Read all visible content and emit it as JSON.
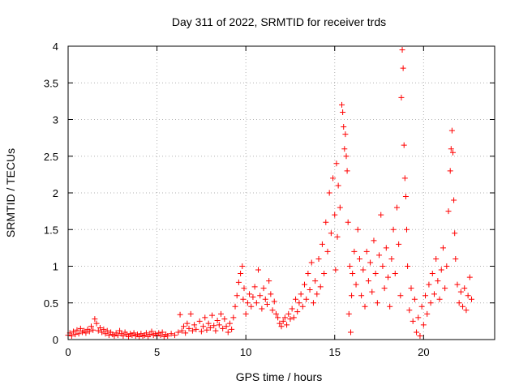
{
  "chart_data": {
    "type": "scatter",
    "title": "Day 311 of 2022, SRMTID for receiver trds",
    "xlabel": "GPS time / hours",
    "ylabel": "SRMTID / TECUs",
    "xlim": [
      0,
      24
    ],
    "ylim": [
      0,
      4
    ],
    "xticks": [
      0,
      5,
      10,
      15,
      20
    ],
    "xtick_labels": [
      "0",
      "5",
      "10",
      "15",
      "20"
    ],
    "yticks": [
      0,
      0.5,
      1,
      1.5,
      2,
      2.5,
      3,
      3.5,
      4
    ],
    "ytick_labels": [
      "0",
      "0.5",
      "1",
      "1.5",
      "2",
      "2.5",
      "3",
      "3.5",
      "4"
    ],
    "grid": true,
    "marker": "+",
    "color": "#ff0000",
    "series": [
      {
        "name": "SRMTID",
        "points": [
          [
            0.0,
            0.06
          ],
          [
            0.1,
            0.09
          ],
          [
            0.2,
            0.05
          ],
          [
            0.3,
            0.11
          ],
          [
            0.4,
            0.07
          ],
          [
            0.5,
            0.13
          ],
          [
            0.6,
            0.08
          ],
          [
            0.7,
            0.15
          ],
          [
            0.8,
            0.1
          ],
          [
            0.9,
            0.12
          ],
          [
            1.0,
            0.09
          ],
          [
            1.1,
            0.14
          ],
          [
            1.2,
            0.11
          ],
          [
            1.3,
            0.18
          ],
          [
            1.4,
            0.13
          ],
          [
            1.5,
            0.28
          ],
          [
            1.6,
            0.22
          ],
          [
            1.7,
            0.12
          ],
          [
            1.8,
            0.16
          ],
          [
            1.9,
            0.1
          ],
          [
            2.0,
            0.14
          ],
          [
            2.1,
            0.08
          ],
          [
            2.2,
            0.12
          ],
          [
            2.3,
            0.06
          ],
          [
            2.4,
            0.1
          ],
          [
            2.5,
            0.07
          ],
          [
            2.6,
            0.05
          ],
          [
            2.7,
            0.09
          ],
          [
            2.8,
            0.06
          ],
          [
            2.9,
            0.12
          ],
          [
            3.0,
            0.08
          ],
          [
            3.1,
            0.05
          ],
          [
            3.2,
            0.1
          ],
          [
            3.3,
            0.07
          ],
          [
            3.4,
            0.04
          ],
          [
            3.5,
            0.08
          ],
          [
            3.6,
            0.06
          ],
          [
            3.7,
            0.09
          ],
          [
            3.8,
            0.05
          ],
          [
            3.9,
            0.07
          ],
          [
            4.0,
            0.04
          ],
          [
            4.1,
            0.08
          ],
          [
            4.2,
            0.05
          ],
          [
            4.3,
            0.06
          ],
          [
            4.4,
            0.09
          ],
          [
            4.5,
            0.04
          ],
          [
            4.6,
            0.07
          ],
          [
            4.7,
            0.11
          ],
          [
            4.8,
            0.06
          ],
          [
            4.9,
            0.08
          ],
          [
            5.0,
            0.05
          ],
          [
            5.1,
            0.09
          ],
          [
            5.2,
            0.06
          ],
          [
            5.3,
            0.1
          ],
          [
            5.4,
            0.04
          ],
          [
            5.5,
            0.07
          ],
          [
            5.6,
            0.05
          ],
          [
            5.8,
            0.08
          ],
          [
            6.0,
            0.06
          ],
          [
            6.2,
            0.1
          ],
          [
            6.3,
            0.34
          ],
          [
            6.4,
            0.12
          ],
          [
            6.5,
            0.18
          ],
          [
            6.6,
            0.09
          ],
          [
            6.7,
            0.22
          ],
          [
            6.8,
            0.15
          ],
          [
            6.9,
            0.35
          ],
          [
            7.0,
            0.12
          ],
          [
            7.1,
            0.2
          ],
          [
            7.2,
            0.14
          ],
          [
            7.4,
            0.25
          ],
          [
            7.5,
            0.11
          ],
          [
            7.6,
            0.18
          ],
          [
            7.7,
            0.3
          ],
          [
            7.8,
            0.13
          ],
          [
            7.9,
            0.22
          ],
          [
            8.0,
            0.16
          ],
          [
            8.1,
            0.33
          ],
          [
            8.2,
            0.19
          ],
          [
            8.3,
            0.12
          ],
          [
            8.4,
            0.26
          ],
          [
            8.5,
            0.2
          ],
          [
            8.6,
            0.35
          ],
          [
            8.7,
            0.15
          ],
          [
            8.8,
            0.28
          ],
          [
            8.9,
            0.18
          ],
          [
            9.0,
            0.1
          ],
          [
            9.1,
            0.22
          ],
          [
            9.2,
            0.14
          ],
          [
            9.3,
            0.3
          ],
          [
            9.4,
            0.45
          ],
          [
            9.5,
            0.6
          ],
          [
            9.6,
            0.78
          ],
          [
            9.7,
            0.9
          ],
          [
            9.8,
            1.0
          ],
          [
            9.85,
            0.55
          ],
          [
            9.9,
            0.7
          ],
          [
            10.0,
            0.35
          ],
          [
            10.1,
            0.5
          ],
          [
            10.2,
            0.62
          ],
          [
            10.3,
            0.45
          ],
          [
            10.4,
            0.58
          ],
          [
            10.5,
            0.72
          ],
          [
            10.6,
            0.5
          ],
          [
            10.7,
            0.95
          ],
          [
            10.8,
            0.6
          ],
          [
            10.9,
            0.42
          ],
          [
            11.0,
            0.7
          ],
          [
            11.1,
            0.55
          ],
          [
            11.2,
            0.48
          ],
          [
            11.3,
            0.8
          ],
          [
            11.4,
            0.62
          ],
          [
            11.5,
            0.4
          ],
          [
            11.6,
            0.52
          ],
          [
            11.7,
            0.35
          ],
          [
            11.8,
            0.3
          ],
          [
            11.9,
            0.22
          ],
          [
            12.0,
            0.18
          ],
          [
            12.1,
            0.25
          ],
          [
            12.2,
            0.3
          ],
          [
            12.3,
            0.2
          ],
          [
            12.4,
            0.35
          ],
          [
            12.5,
            0.28
          ],
          [
            12.6,
            0.42
          ],
          [
            12.7,
            0.3
          ],
          [
            12.8,
            0.55
          ],
          [
            12.9,
            0.38
          ],
          [
            13.0,
            0.5
          ],
          [
            13.1,
            0.62
          ],
          [
            13.2,
            0.45
          ],
          [
            13.3,
            0.75
          ],
          [
            13.4,
            0.55
          ],
          [
            13.5,
            0.9
          ],
          [
            13.6,
            0.68
          ],
          [
            13.7,
            1.05
          ],
          [
            13.8,
            0.5
          ],
          [
            13.9,
            0.8
          ],
          [
            14.0,
            0.62
          ],
          [
            14.1,
            1.1
          ],
          [
            14.2,
            0.72
          ],
          [
            14.3,
            1.3
          ],
          [
            14.4,
            0.9
          ],
          [
            14.5,
            1.6
          ],
          [
            14.6,
            1.2
          ],
          [
            14.7,
            2.0
          ],
          [
            14.8,
            1.45
          ],
          [
            14.9,
            2.2
          ],
          [
            15.0,
            1.7
          ],
          [
            15.05,
            0.95
          ],
          [
            15.1,
            2.4
          ],
          [
            15.15,
            1.4
          ],
          [
            15.2,
            2.1
          ],
          [
            15.3,
            1.8
          ],
          [
            15.4,
            3.2
          ],
          [
            15.45,
            3.1
          ],
          [
            15.5,
            2.9
          ],
          [
            15.55,
            2.6
          ],
          [
            15.6,
            2.8
          ],
          [
            15.65,
            2.5
          ],
          [
            15.7,
            2.3
          ],
          [
            15.75,
            1.6
          ],
          [
            15.8,
            0.35
          ],
          [
            15.85,
            1.0
          ],
          [
            15.9,
            0.1
          ],
          [
            15.95,
            0.6
          ],
          [
            16.0,
            0.9
          ],
          [
            16.1,
            1.2
          ],
          [
            16.2,
            0.75
          ],
          [
            16.3,
            1.5
          ],
          [
            16.4,
            1.1
          ],
          [
            16.5,
            0.6
          ],
          [
            16.6,
            0.95
          ],
          [
            16.7,
            0.45
          ],
          [
            16.8,
            1.2
          ],
          [
            16.9,
            0.8
          ],
          [
            17.0,
            1.05
          ],
          [
            17.1,
            0.65
          ],
          [
            17.2,
            1.35
          ],
          [
            17.3,
            0.9
          ],
          [
            17.4,
            0.5
          ],
          [
            17.5,
            1.15
          ],
          [
            17.6,
            1.7
          ],
          [
            17.7,
            1.0
          ],
          [
            17.8,
            0.7
          ],
          [
            17.9,
            1.25
          ],
          [
            18.0,
            0.85
          ],
          [
            18.1,
            0.45
          ],
          [
            18.2,
            1.1
          ],
          [
            18.3,
            1.5
          ],
          [
            18.4,
            0.9
          ],
          [
            18.5,
            1.8
          ],
          [
            18.6,
            1.3
          ],
          [
            18.7,
            0.6
          ],
          [
            18.75,
            3.3
          ],
          [
            18.8,
            3.95
          ],
          [
            18.85,
            3.7
          ],
          [
            18.9,
            2.65
          ],
          [
            18.95,
            2.2
          ],
          [
            19.0,
            1.95
          ],
          [
            19.05,
            1.5
          ],
          [
            19.1,
            1.0
          ],
          [
            19.2,
            0.4
          ],
          [
            19.3,
            0.7
          ],
          [
            19.4,
            0.25
          ],
          [
            19.5,
            0.55
          ],
          [
            19.6,
            0.1
          ],
          [
            19.7,
            0.3
          ],
          [
            19.8,
            0.05
          ],
          [
            19.9,
            0.45
          ],
          [
            20.0,
            0.2
          ],
          [
            20.1,
            0.6
          ],
          [
            20.2,
            0.35
          ],
          [
            20.3,
            0.75
          ],
          [
            20.4,
            0.5
          ],
          [
            20.5,
            0.9
          ],
          [
            20.6,
            0.62
          ],
          [
            20.7,
            1.1
          ],
          [
            20.8,
            0.8
          ],
          [
            20.9,
            0.55
          ],
          [
            21.0,
            0.95
          ],
          [
            21.1,
            1.25
          ],
          [
            21.2,
            0.7
          ],
          [
            21.3,
            1.0
          ],
          [
            21.4,
            1.75
          ],
          [
            21.5,
            2.3
          ],
          [
            21.55,
            2.6
          ],
          [
            21.6,
            2.85
          ],
          [
            21.65,
            2.55
          ],
          [
            21.7,
            1.9
          ],
          [
            21.75,
            1.45
          ],
          [
            21.8,
            1.1
          ],
          [
            21.9,
            0.75
          ],
          [
            22.0,
            0.5
          ],
          [
            22.1,
            0.65
          ],
          [
            22.2,
            0.45
          ],
          [
            22.3,
            0.7
          ],
          [
            22.4,
            0.4
          ],
          [
            22.5,
            0.6
          ],
          [
            22.6,
            0.85
          ],
          [
            22.7,
            0.55
          ]
        ]
      }
    ]
  }
}
